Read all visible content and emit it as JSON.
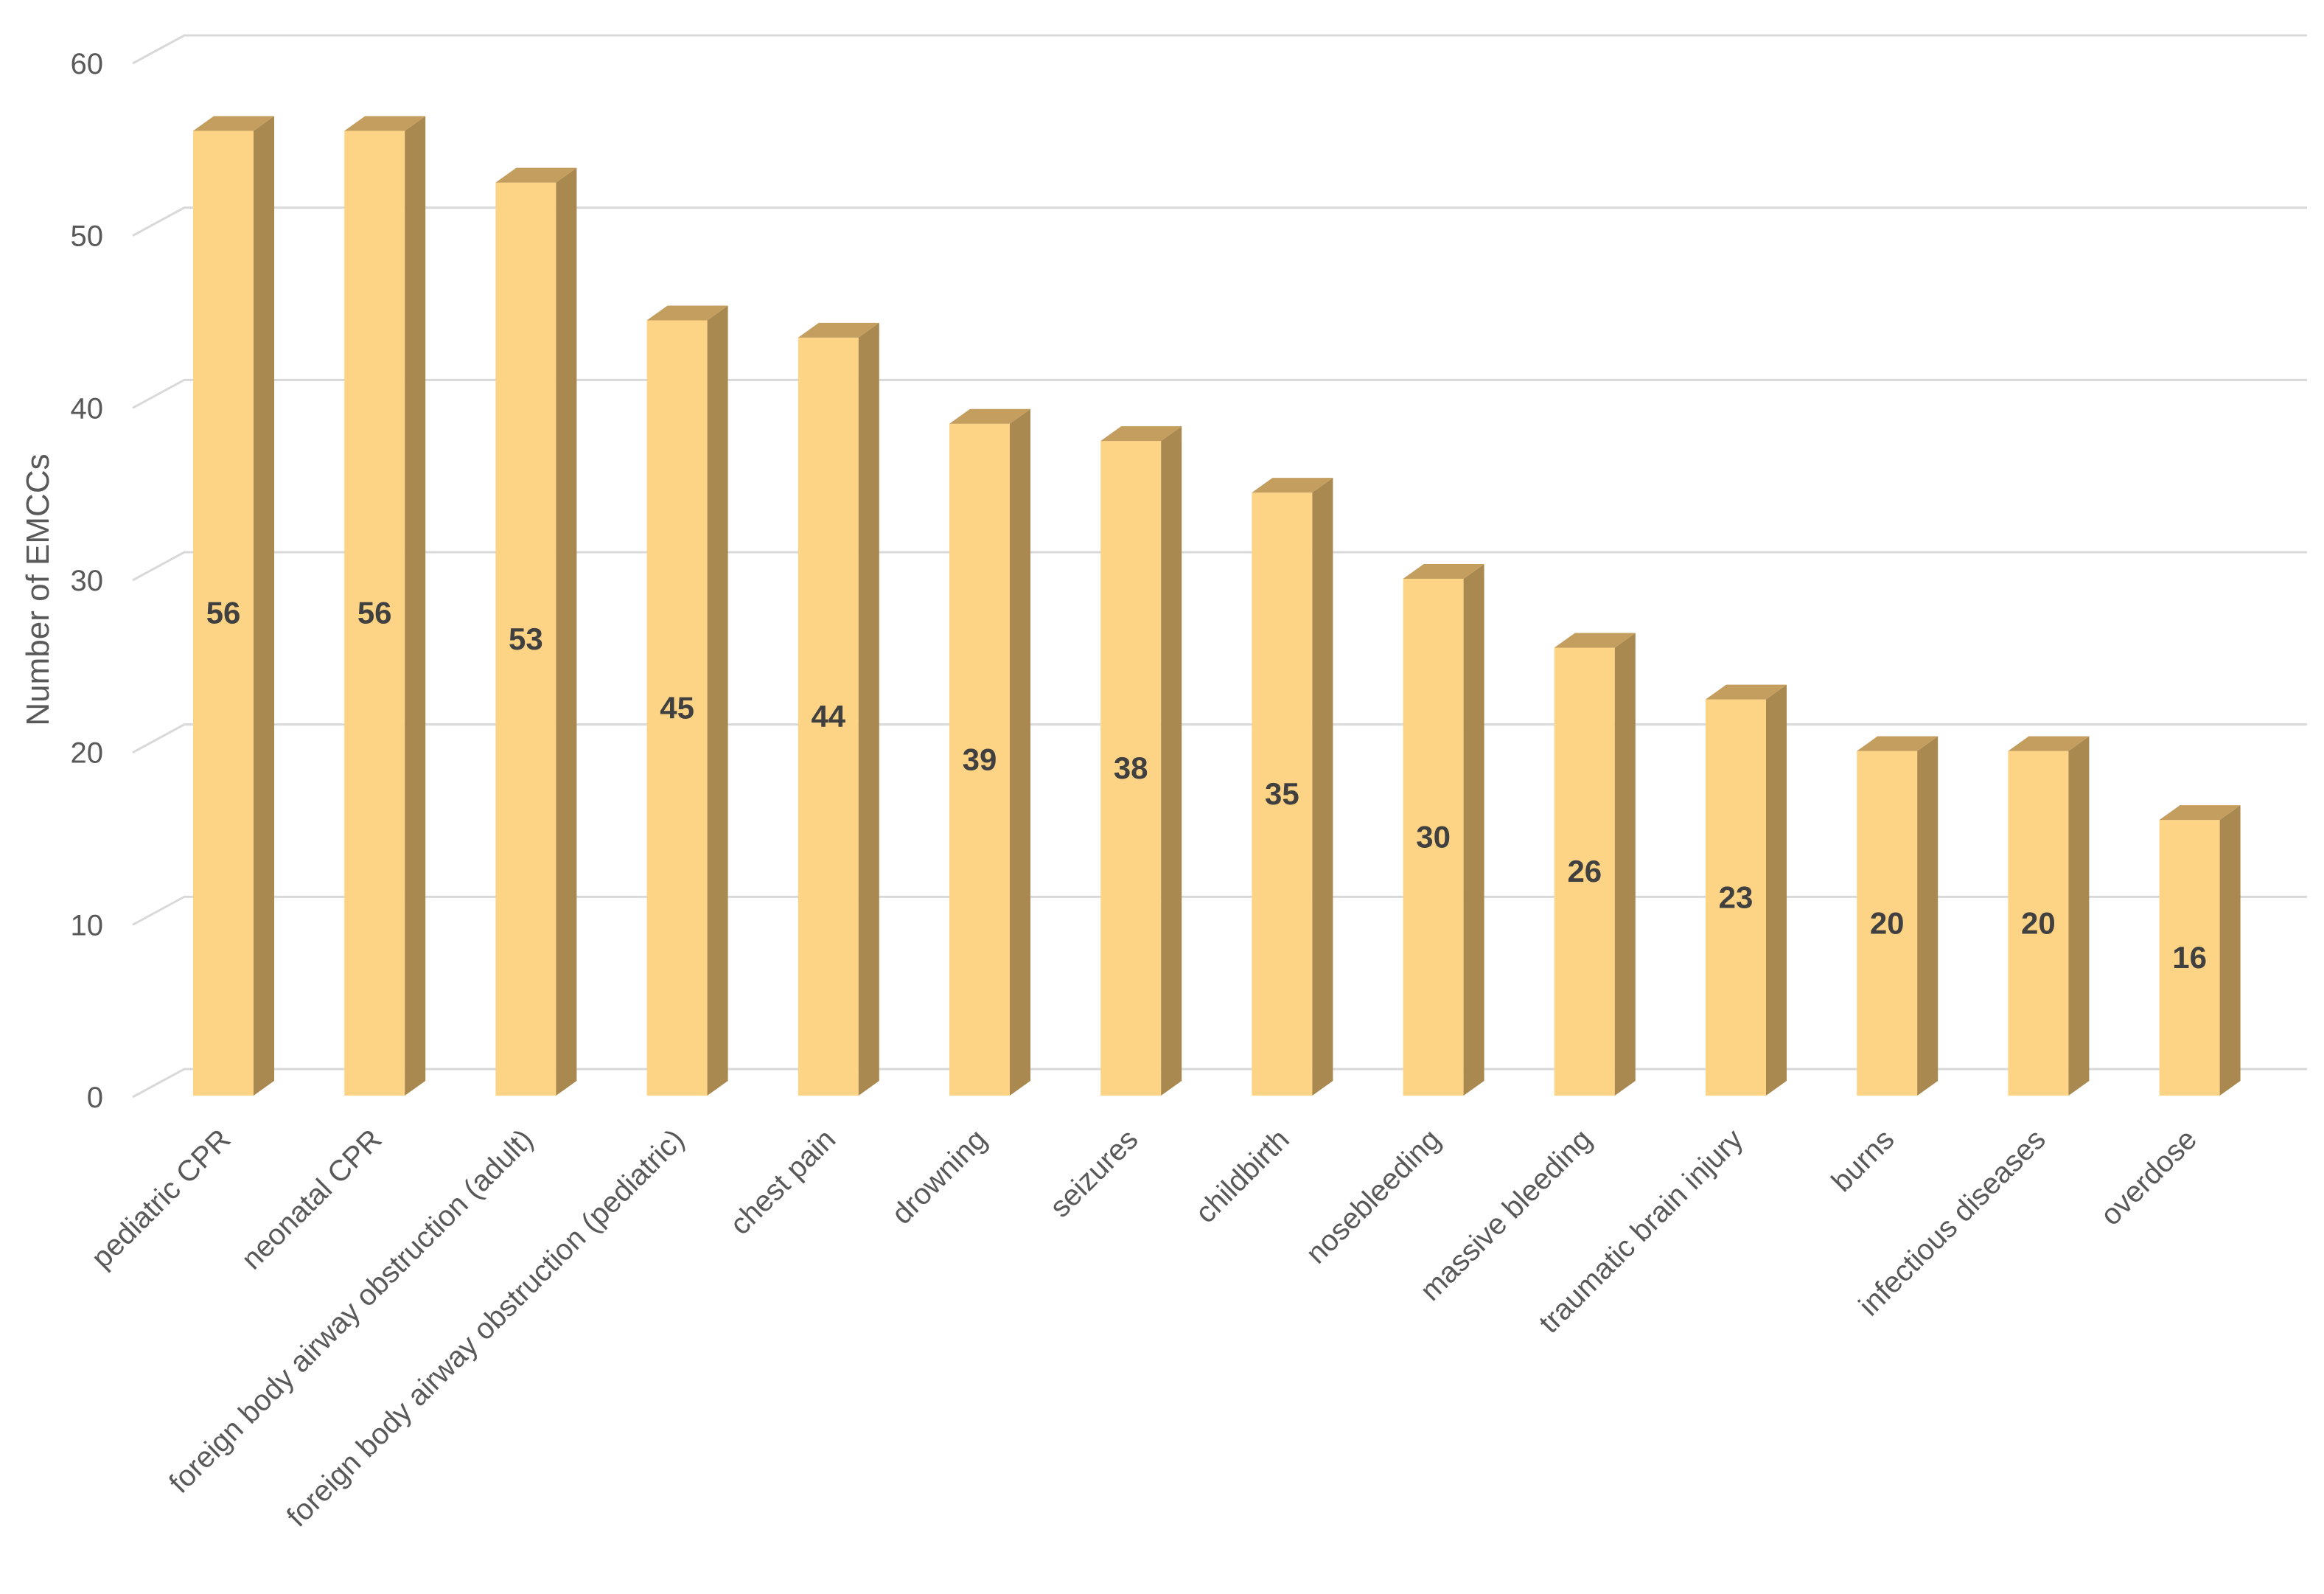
{
  "chart_data": {
    "type": "bar",
    "style": "3d-column",
    "title": "",
    "xlabel": "",
    "ylabel": "Number of EMCCs",
    "ylim": [
      0,
      60
    ],
    "yticks": [
      0,
      10,
      20,
      30,
      40,
      50,
      60
    ],
    "grid": true,
    "legend": "none",
    "categories": [
      "pediatric CPR",
      "neonatal CPR",
      "foreign body airway obstruction (adult)",
      "foreign body airway obstruction (pediatric)",
      "chest pain",
      "drowning",
      "seizures",
      "childbirth",
      "nosebleeding",
      "massive bleeding",
      "traumatic brain injury",
      "burns",
      "infectious diseases",
      "overdose"
    ],
    "values": [
      56,
      56,
      53,
      45,
      44,
      39,
      38,
      35,
      30,
      26,
      23,
      20,
      20,
      16
    ],
    "data_labels": true
  },
  "colors": {
    "bar_front": "#FDD385",
    "bar_side": "#A98950",
    "bar_top": "#C39E5E",
    "grid": "#D9D9D9",
    "text": "#595959",
    "data_label": "#404040"
  }
}
